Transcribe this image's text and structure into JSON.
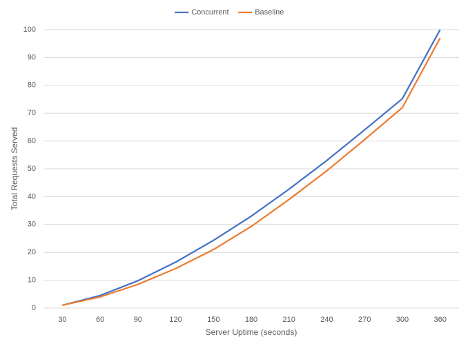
{
  "chart_data": {
    "type": "line",
    "x_label": "Server Uptime (seconds)",
    "y_label": "Total Requests Served",
    "categories": [
      "30",
      "60",
      "90",
      "120",
      "150",
      "180",
      "210",
      "240",
      "270",
      "300",
      "360"
    ],
    "series": [
      {
        "name": "Concurrent",
        "color": "#4472c4",
        "values": [
          1,
          4.5,
          9.8,
          16.5,
          24.3,
          33,
          42.7,
          53,
          64,
          75.2,
          100
        ]
      },
      {
        "name": "Baseline",
        "color": "#ed7d31",
        "values": [
          1,
          4,
          8.5,
          14.2,
          21,
          29.3,
          39,
          49.3,
          60.5,
          72,
          97
        ]
      }
    ],
    "ylim": [
      0,
      100
    ],
    "yticks": [
      0,
      10,
      20,
      30,
      40,
      50,
      60,
      70,
      80,
      90,
      100
    ],
    "grid": true,
    "legend": "top"
  }
}
